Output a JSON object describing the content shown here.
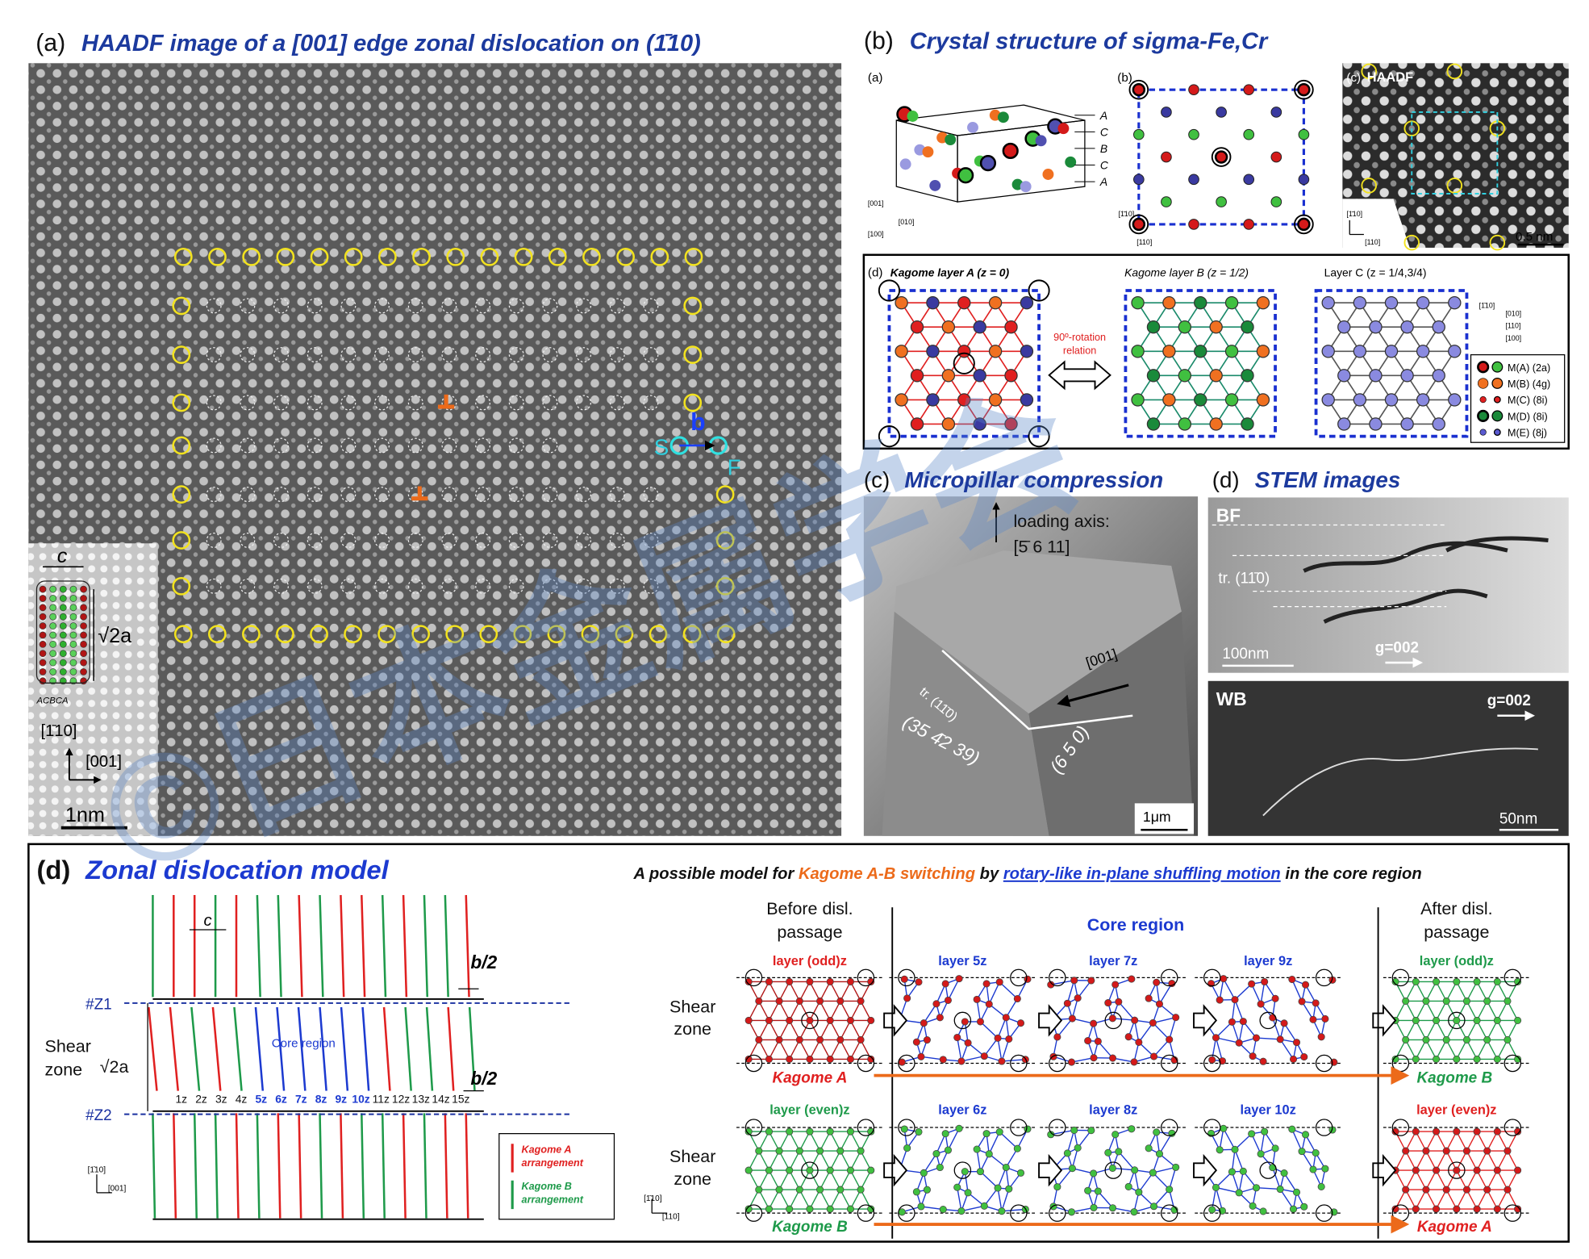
{
  "panel_a": {
    "label": "(a)",
    "title": "HAADF image of a [001] edge zonal dislocation on (1̄10)",
    "inset": {
      "c": "c",
      "height": "√2a",
      "layers": "ACBCA",
      "axis_v": "[1̄10]",
      "axis_h": "[001]",
      "scale": "1nm"
    },
    "circuit": {
      "start": "S",
      "vector": "b",
      "finish": "F"
    }
  },
  "panel_b": {
    "label": "(b)",
    "title": "Crystal structure of sigma-Fe,Cr",
    "structure": {
      "label": "(a)",
      "layers": [
        "A",
        "C",
        "B",
        "C",
        "A"
      ],
      "axes": [
        "[001]",
        "[010]",
        "[100]"
      ]
    },
    "projection": {
      "label": "(b)",
      "axes": [
        "[1̄10]",
        "[110]"
      ]
    },
    "haadf": {
      "label": "(c)",
      "title": "HAADF",
      "scale": "0.5 nm",
      "axes": [
        "[1̄10]",
        "[110]"
      ]
    },
    "layers": {
      "label": "(d)",
      "layer_a": "Kagome layer A (z = 0)",
      "layer_b": "Kagome layer B (z = 1/2)",
      "layer_c": "Layer C (z = 1/4,3/4)",
      "relation": [
        "90º-rotation",
        "relation"
      ],
      "axes": [
        "[1̄10]",
        "[010]",
        "[110]",
        "[100]"
      ],
      "legend": [
        "M(A) (2a)",
        "M(B) (4g)",
        "M(C) (8i)",
        "M(D) (8i)",
        "M(E) (8j)"
      ]
    }
  },
  "panel_c": {
    "label": "(c)",
    "title": "Micropillar compression",
    "loading": [
      "loading axis:",
      "[5̄ 6 11]"
    ],
    "direction": "[001]",
    "trace": "tr. (11̄0)",
    "face_left": "(35 4̄2 39)",
    "face_right": "(6 5 0)",
    "scale": "1μm"
  },
  "panel_d": {
    "label": "(d)",
    "title": "STEM images",
    "bf": {
      "mode": "BF",
      "trace": "tr. (11̄0)",
      "scale": "100nm",
      "g": "g=002"
    },
    "wb": {
      "mode": "WB",
      "g": "g=002",
      "scale": "50nm"
    }
  },
  "model": {
    "label": "(d)",
    "title": "Zonal dislocation model",
    "subtitle": [
      "A possible model for ",
      "Kagome A-B switching",
      " by ",
      "rotary-like in-plane shuffling motion",
      " in the core region"
    ],
    "c": "c",
    "half_b": [
      "b/2",
      "b/2"
    ],
    "planes": [
      "#Z1",
      "#Z2"
    ],
    "shear_zone": [
      "Shear",
      "zone"
    ],
    "height": "√2a",
    "core": "Core region",
    "zones": [
      "1z",
      "2z",
      "3z",
      "4z",
      "5z",
      "6z",
      "7z",
      "8z",
      "9z",
      "10z",
      "11z",
      "12z",
      "13z",
      "14z",
      "15z"
    ],
    "axes": [
      "[1̄10]",
      "[001]"
    ],
    "legend": [
      [
        "Kagome A",
        "arrangement"
      ],
      [
        "Kagome B",
        "arrangement"
      ]
    ],
    "before": [
      "Before disl.",
      "passage"
    ],
    "core_title": "Core region",
    "after": [
      "After disl.",
      "passage"
    ],
    "odd": {
      "layers": [
        "layer (odd)z",
        "layer 5z",
        "layer 7z",
        "layer 9z",
        "layer (odd)z"
      ],
      "shear_zone": [
        "Shear",
        "zone"
      ],
      "start": "Kagome A",
      "end": "Kagome B"
    },
    "even": {
      "layers": [
        "layer (even)z",
        "layer 6z",
        "layer 8z",
        "layer 10z",
        "layer (even)z"
      ],
      "shear_zone": [
        "Shear",
        "zone"
      ],
      "start": "Kagome B",
      "end": "Kagome A"
    },
    "lattice_axes": [
      "[1̄10]",
      "[110]"
    ]
  },
  "watermark": "©日本金属学会"
}
